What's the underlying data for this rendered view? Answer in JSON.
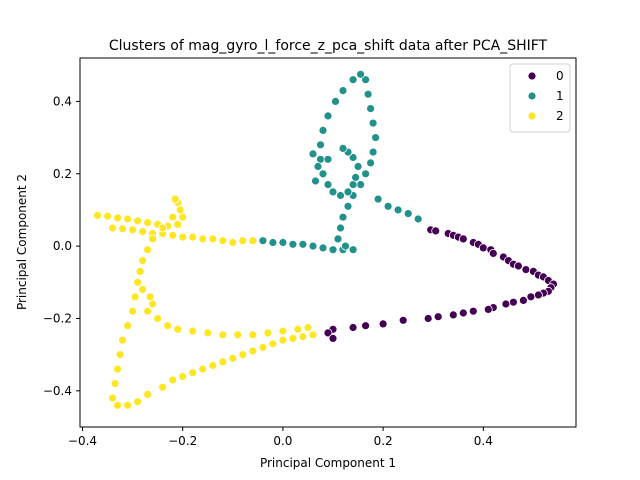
{
  "chart_data": {
    "type": "scatter",
    "title": "Clusters of mag_gyro_l_force_z_pca_shift data after PCA_SHIFT",
    "xlabel": "Principal Component 1",
    "ylabel": "Principal Component 2",
    "xlim": [
      -0.405,
      0.585
    ],
    "ylim": [
      -0.5,
      0.52
    ],
    "xticks": [
      -0.4,
      -0.2,
      0.0,
      0.2,
      0.4
    ],
    "yticks": [
      -0.4,
      -0.2,
      0.0,
      0.2,
      0.4
    ],
    "xtick_labels": [
      "−0.4",
      "−0.2",
      "0.0",
      "0.2",
      "0.4"
    ],
    "ytick_labels": [
      "−0.4",
      "−0.2",
      "0.0",
      "0.2",
      "0.4"
    ],
    "grid": false,
    "legend_position": "top-right",
    "series": [
      {
        "name": "0",
        "color": "#440154",
        "points": [
          [
            0.295,
            0.045
          ],
          [
            0.305,
            0.042
          ],
          [
            0.33,
            0.035
          ],
          [
            0.34,
            0.03
          ],
          [
            0.35,
            0.025
          ],
          [
            0.36,
            0.02
          ],
          [
            0.38,
            0.01
          ],
          [
            0.39,
            0.005
          ],
          [
            0.4,
            -0.005
          ],
          [
            0.415,
            -0.01
          ],
          [
            0.42,
            -0.02
          ],
          [
            0.44,
            -0.03
          ],
          [
            0.45,
            -0.04
          ],
          [
            0.46,
            -0.05
          ],
          [
            0.47,
            -0.055
          ],
          [
            0.485,
            -0.065
          ],
          [
            0.5,
            -0.07
          ],
          [
            0.51,
            -0.08
          ],
          [
            0.52,
            -0.085
          ],
          [
            0.53,
            -0.095
          ],
          [
            0.54,
            -0.105
          ],
          [
            0.535,
            -0.115
          ],
          [
            0.53,
            -0.125
          ],
          [
            0.52,
            -0.13
          ],
          [
            0.51,
            -0.135
          ],
          [
            0.495,
            -0.14
          ],
          [
            0.48,
            -0.15
          ],
          [
            0.46,
            -0.155
          ],
          [
            0.445,
            -0.16
          ],
          [
            0.42,
            -0.17
          ],
          [
            0.41,
            -0.175
          ],
          [
            0.38,
            -0.18
          ],
          [
            0.36,
            -0.185
          ],
          [
            0.34,
            -0.19
          ],
          [
            0.31,
            -0.195
          ],
          [
            0.29,
            -0.2
          ],
          [
            0.24,
            -0.205
          ],
          [
            0.2,
            -0.215
          ],
          [
            0.165,
            -0.22
          ],
          [
            0.14,
            -0.225
          ],
          [
            0.1,
            -0.23
          ],
          [
            0.09,
            -0.24
          ],
          [
            0.1,
            -0.255
          ]
        ]
      },
      {
        "name": "1",
        "color": "#21918c",
        "points": [
          [
            -0.04,
            0.015
          ],
          [
            -0.02,
            0.01
          ],
          [
            0.0,
            0.01
          ],
          [
            0.02,
            0.005
          ],
          [
            0.04,
            0.005
          ],
          [
            0.06,
            0.0
          ],
          [
            0.08,
            -0.005
          ],
          [
            0.1,
            -0.01
          ],
          [
            0.12,
            -0.01
          ],
          [
            0.14,
            -0.01
          ],
          [
            0.125,
            0.0
          ],
          [
            0.11,
            0.02
          ],
          [
            0.115,
            0.05
          ],
          [
            0.12,
            0.08
          ],
          [
            0.13,
            0.11
          ],
          [
            0.14,
            0.14
          ],
          [
            0.155,
            0.17
          ],
          [
            0.165,
            0.2
          ],
          [
            0.175,
            0.23
          ],
          [
            0.18,
            0.26
          ],
          [
            0.185,
            0.3
          ],
          [
            0.18,
            0.34
          ],
          [
            0.175,
            0.38
          ],
          [
            0.17,
            0.42
          ],
          [
            0.165,
            0.46
          ],
          [
            0.155,
            0.475
          ],
          [
            0.14,
            0.46
          ],
          [
            0.12,
            0.43
          ],
          [
            0.105,
            0.4
          ],
          [
            0.09,
            0.36
          ],
          [
            0.08,
            0.32
          ],
          [
            0.075,
            0.28
          ],
          [
            0.075,
            0.24
          ],
          [
            0.08,
            0.2
          ],
          [
            0.09,
            0.17
          ],
          [
            0.1,
            0.15
          ],
          [
            0.115,
            0.14
          ],
          [
            0.13,
            0.15
          ],
          [
            0.14,
            0.17
          ],
          [
            0.145,
            0.19
          ],
          [
            0.15,
            0.22
          ],
          [
            0.14,
            0.245
          ],
          [
            0.13,
            0.26
          ],
          [
            0.12,
            0.27
          ],
          [
            0.19,
            0.13
          ],
          [
            0.21,
            0.11
          ],
          [
            0.23,
            0.1
          ],
          [
            0.25,
            0.09
          ],
          [
            0.27,
            0.075
          ],
          [
            0.09,
            0.24
          ],
          [
            0.065,
            0.18
          ],
          [
            0.07,
            0.22
          ],
          [
            0.06,
            0.255
          ]
        ]
      },
      {
        "name": "2",
        "color": "#fde725",
        "points": [
          [
            -0.37,
            0.085
          ],
          [
            -0.35,
            0.083
          ],
          [
            -0.33,
            0.078
          ],
          [
            -0.31,
            0.075
          ],
          [
            -0.29,
            0.07
          ],
          [
            -0.27,
            0.065
          ],
          [
            -0.25,
            0.06
          ],
          [
            -0.23,
            0.055
          ],
          [
            -0.21,
            0.06
          ],
          [
            -0.2,
            0.08
          ],
          [
            -0.205,
            0.1
          ],
          [
            -0.21,
            0.12
          ],
          [
            -0.215,
            0.13
          ],
          [
            -0.34,
            0.05
          ],
          [
            -0.32,
            0.048
          ],
          [
            -0.3,
            0.045
          ],
          [
            -0.28,
            0.04
          ],
          [
            -0.26,
            0.035
          ],
          [
            -0.24,
            0.035
          ],
          [
            -0.22,
            0.03
          ],
          [
            -0.2,
            0.025
          ],
          [
            -0.18,
            0.025
          ],
          [
            -0.16,
            0.02
          ],
          [
            -0.14,
            0.02
          ],
          [
            -0.12,
            0.015
          ],
          [
            -0.1,
            0.01
          ],
          [
            -0.08,
            0.015
          ],
          [
            -0.06,
            0.015
          ],
          [
            -0.22,
            0.08
          ],
          [
            -0.24,
            0.05
          ],
          [
            -0.26,
            0.02
          ],
          [
            -0.27,
            -0.01
          ],
          [
            -0.28,
            -0.04
          ],
          [
            -0.285,
            -0.07
          ],
          [
            -0.29,
            -0.1
          ],
          [
            -0.295,
            -0.14
          ],
          [
            -0.3,
            -0.18
          ],
          [
            -0.31,
            -0.22
          ],
          [
            -0.32,
            -0.26
          ],
          [
            -0.325,
            -0.3
          ],
          [
            -0.33,
            -0.34
          ],
          [
            -0.335,
            -0.38
          ],
          [
            -0.34,
            -0.42
          ],
          [
            -0.33,
            -0.44
          ],
          [
            -0.31,
            -0.44
          ],
          [
            -0.29,
            -0.43
          ],
          [
            -0.27,
            -0.41
          ],
          [
            -0.24,
            -0.39
          ],
          [
            -0.22,
            -0.37
          ],
          [
            -0.2,
            -0.36
          ],
          [
            -0.18,
            -0.35
          ],
          [
            -0.16,
            -0.34
          ],
          [
            -0.14,
            -0.33
          ],
          [
            -0.12,
            -0.32
          ],
          [
            -0.1,
            -0.31
          ],
          [
            -0.08,
            -0.3
          ],
          [
            -0.06,
            -0.29
          ],
          [
            -0.04,
            -0.28
          ],
          [
            -0.02,
            -0.27
          ],
          [
            0.0,
            -0.26
          ],
          [
            0.02,
            -0.255
          ],
          [
            0.04,
            -0.25
          ],
          [
            0.06,
            -0.245
          ],
          [
            -0.27,
            -0.18
          ],
          [
            -0.25,
            -0.2
          ],
          [
            -0.23,
            -0.22
          ],
          [
            -0.21,
            -0.23
          ],
          [
            -0.18,
            -0.235
          ],
          [
            -0.15,
            -0.24
          ],
          [
            -0.12,
            -0.245
          ],
          [
            -0.09,
            -0.245
          ],
          [
            -0.06,
            -0.245
          ],
          [
            -0.03,
            -0.24
          ],
          [
            0.0,
            -0.235
          ],
          [
            0.03,
            -0.23
          ],
          [
            0.05,
            -0.225
          ],
          [
            -0.26,
            -0.16
          ],
          [
            -0.265,
            -0.14
          ],
          [
            -0.28,
            -0.12
          ]
        ]
      }
    ]
  }
}
